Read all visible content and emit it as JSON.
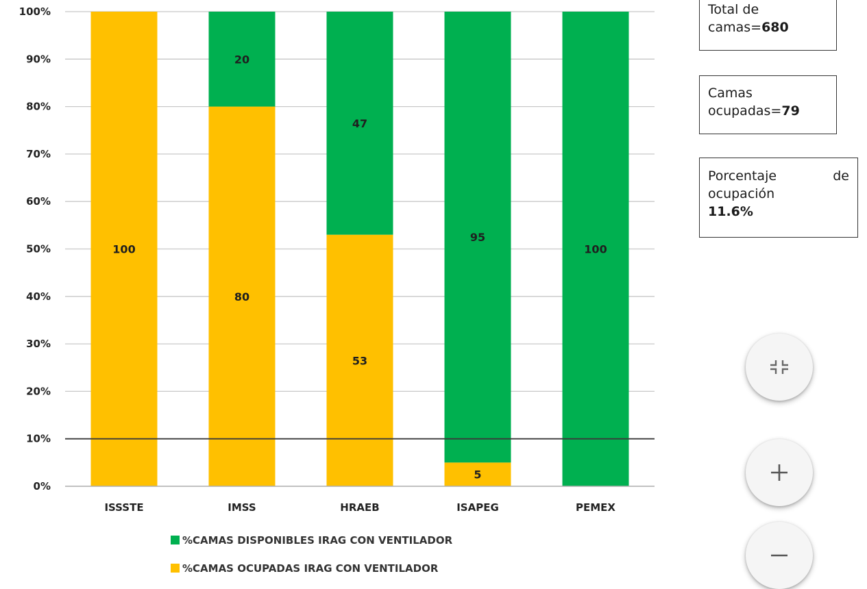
{
  "chart_data": {
    "type": "bar",
    "stacked": true,
    "categories": [
      "ISSSTE",
      "IMSS",
      "HRAEB",
      "ISAPEG",
      "PEMEX"
    ],
    "series": [
      {
        "name": "%CAMAS OCUPADAS IRAG CON VENTILADOR",
        "color": "#FFC000",
        "values": [
          100,
          80,
          53,
          5,
          0
        ]
      },
      {
        "name": "%CAMAS DISPONIBLES IRAG  CON VENTILADOR",
        "color": "#00B050",
        "values": [
          0,
          20,
          47,
          95,
          100
        ]
      }
    ],
    "data_labels": [
      [
        "100",
        "80",
        "53",
        "5",
        ""
      ],
      [
        "",
        "20",
        "47",
        "95",
        "100"
      ]
    ],
    "y_ticks": [
      "0%",
      "10%",
      "20%",
      "30%",
      "40%",
      "50%",
      "60%",
      "70%",
      "80%",
      "90%",
      "100%"
    ],
    "ylim": [
      0,
      100
    ],
    "reference_line": 10,
    "grid": true,
    "legend_position": "bottom",
    "legend_order": [
      1,
      0
    ]
  },
  "info": {
    "total": {
      "line1": "Total de",
      "line2": "camas=",
      "value": "680"
    },
    "ocupadas": {
      "line1": "Camas",
      "line2": "ocupadas=",
      "value": "79"
    },
    "porcentaje": {
      "word1": "Porcentaje",
      "word2": "de",
      "line2": "ocupación",
      "value": "11.6%"
    }
  },
  "controls": {
    "exit_fullscreen_icon": "exit-fullscreen-icon",
    "zoom_in_icon": "plus-icon",
    "zoom_out_icon": "minus-icon"
  }
}
